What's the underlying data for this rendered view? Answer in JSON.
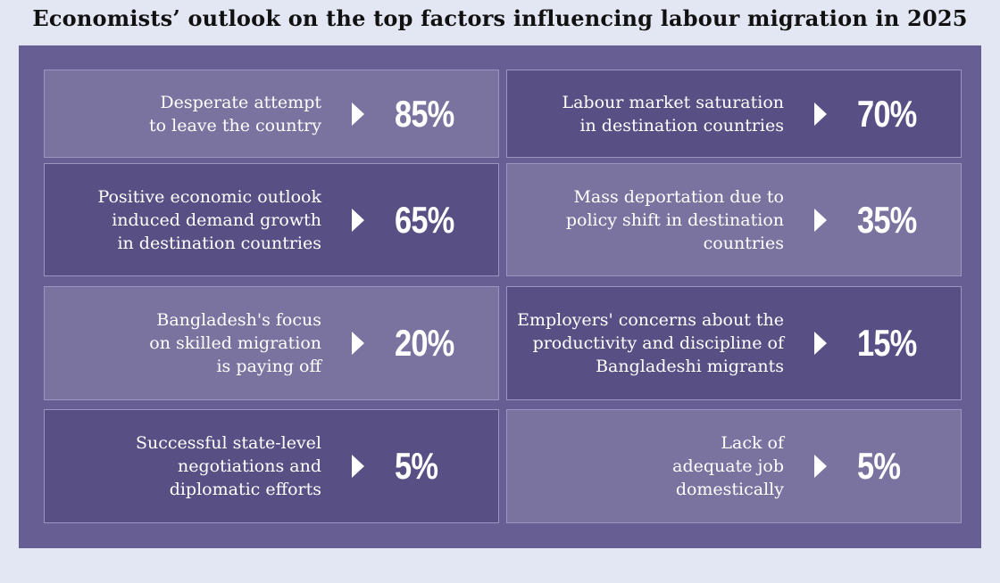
{
  "title": "Economists’ outlook on the top factors influencing labour migration in 2025",
  "chart_data": {
    "type": "table",
    "title": "Economists’ outlook on the top factors influencing labour migration in 2025",
    "items": [
      {
        "label": "Desperate attempt\nto leave the country",
        "value": 85,
        "value_text": "85%",
        "shade": "light"
      },
      {
        "label": "Labour market saturation\nin destination countries",
        "value": 70,
        "value_text": "70%",
        "shade": "dark"
      },
      {
        "label": "Positive economic outlook\ninduced demand growth\nin destination countries",
        "value": 65,
        "value_text": "65%",
        "shade": "dark"
      },
      {
        "label": "Mass deportation due to\npolicy shift in destination\ncountries",
        "value": 35,
        "value_text": "35%",
        "shade": "light"
      },
      {
        "label": "Bangladesh's focus\non skilled migration\nis paying off",
        "value": 20,
        "value_text": "20%",
        "shade": "light"
      },
      {
        "label": "Employers' concerns about the\nproductivity and discipline of\nBangladeshi migrants",
        "value": 15,
        "value_text": "15%",
        "shade": "dark"
      },
      {
        "label": "Successful state-level\nnegotiations and\ndiplomatic efforts",
        "value": 5,
        "value_text": "5%",
        "shade": "dark"
      },
      {
        "label": "Lack of\nadequate job\ndomestically",
        "value": 5,
        "value_text": "5%",
        "shade": "light"
      }
    ]
  },
  "colors": {
    "background": "#e3e7f3",
    "panel": "#675f93",
    "card_light": "#7a739f",
    "card_dark": "#585084",
    "card_border": "#9c95c2",
    "text": "#ffffff"
  },
  "icons": {
    "pointer": "triangle-right-icon"
  }
}
